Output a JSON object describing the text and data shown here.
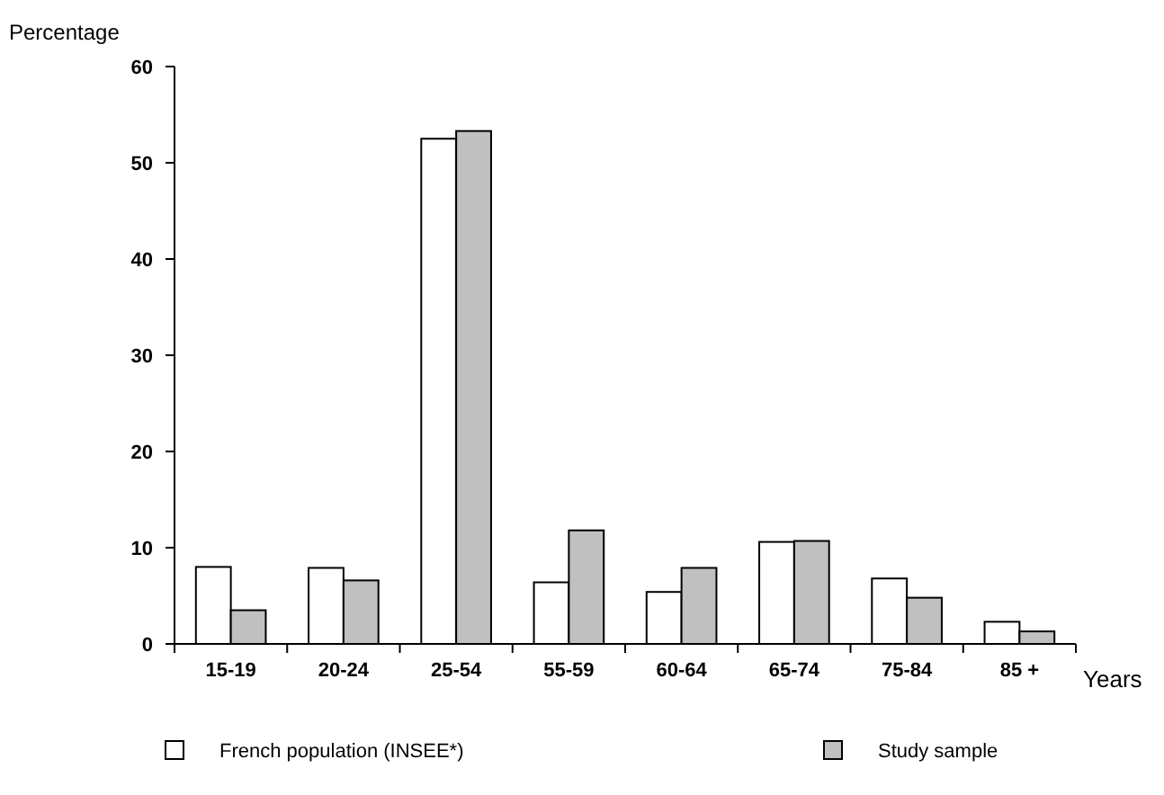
{
  "chart_data": {
    "type": "bar",
    "xlabel": "Years",
    "ylabel": "Percentage",
    "categories": [
      "15-19",
      "20-24",
      "25-54",
      "55-59",
      "60-64",
      "65-74",
      "75-84",
      "85 +"
    ],
    "series": [
      {
        "name": "French population (INSEE*)",
        "color": "#ffffff",
        "values": [
          8.0,
          7.9,
          52.5,
          6.4,
          5.4,
          10.6,
          6.8,
          2.3
        ]
      },
      {
        "name": "Study sample",
        "color": "#c0c0c0",
        "values": [
          3.5,
          6.6,
          53.3,
          11.8,
          7.9,
          10.7,
          4.8,
          1.3
        ]
      }
    ],
    "ylim": [
      0,
      60
    ],
    "yticks": [
      0,
      10,
      20,
      30,
      40,
      50,
      60
    ],
    "grid": false,
    "legend": "bottom"
  }
}
